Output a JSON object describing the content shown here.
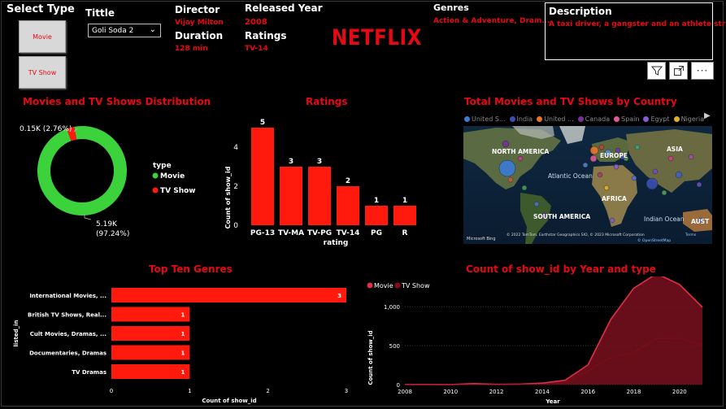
{
  "filters": {
    "select_type_label": "Select Type",
    "movie_button": "Movie",
    "tvshow_button": "TV Show",
    "title_label": "Tittle",
    "title_value": "Goli Soda 2"
  },
  "details": {
    "director_label": "Director",
    "director_value": "Vijay Milton",
    "duration_label": "Duration",
    "duration_value": "128 min",
    "released_label": "Released Year",
    "released_value": "2008",
    "ratings_label": "Ratings",
    "ratings_value": "TV-14",
    "genres_label": "Genres",
    "genres_value": "Action & Adventure, Dram...",
    "description_label": "Description",
    "description_value": "A taxi driver, a gangster and an athlete stru..."
  },
  "logo_text": "NETFLIX",
  "colors": {
    "accent": "#e50914",
    "movie": "#3cd23c",
    "tvshow": "#ff1a0d",
    "bar": "#ff1a0d"
  },
  "visual_icons": [
    "filter-icon",
    "focus-mode-icon",
    "more-options-icon"
  ],
  "donut": {
    "title": "Movies and TV Shows Distribution",
    "legend_title": "type",
    "legend": [
      "Movie",
      "TV Show"
    ],
    "tv_label": "0.15K (2.76%)",
    "movie_label_1": "5.19K",
    "movie_label_2": "(97.24%)"
  },
  "map": {
    "title": "Total Movies and TV Shows by Country",
    "legend": [
      {
        "name": "United S...",
        "color": "#3a7bd5"
      },
      {
        "name": "India",
        "color": "#3a4fb0"
      },
      {
        "name": "United ...",
        "color": "#e8742a"
      },
      {
        "name": "Canada",
        "color": "#7a2f9a"
      },
      {
        "name": "Spain",
        "color": "#e05a9a"
      },
      {
        "name": "Egypt",
        "color": "#8a5ad0"
      },
      {
        "name": "Nigeria",
        "color": "#e0b020"
      }
    ],
    "labels": {
      "na": "NORTH AMERICA",
      "eu": "EUROPE",
      "as": "ASIA",
      "af": "AFRICA",
      "sa": "SOUTH AMERICA",
      "ao": "Atlantic Ocean",
      "io": "Indian Ocean",
      "au": "AUST"
    },
    "attribution": "© 2022 TomTom, Earthstar Geographics SIO, © 2023 Microsoft Corporation",
    "terms": "Terms",
    "osm": "© OpenStreetMap",
    "bing": "Microsoft Bing"
  },
  "chart_data": [
    {
      "type": "pie",
      "title": "Movies and TV Shows Distribution",
      "categories": [
        "Movie",
        "TV Show"
      ],
      "values": [
        5190,
        150
      ],
      "percentages": [
        97.24,
        2.76
      ]
    },
    {
      "type": "bar",
      "title": "Ratings",
      "categories": [
        "PG-13",
        "TV-MA",
        "TV-PG",
        "TV-14",
        "PG",
        "R"
      ],
      "values": [
        5,
        3,
        3,
        2,
        1,
        1
      ],
      "xlabel": "rating",
      "ylabel": "Count of show_id",
      "ylim": [
        0,
        5
      ],
      "yticks": [
        0,
        2,
        4
      ]
    },
    {
      "type": "bar",
      "orientation": "horizontal",
      "title": "Top Ten Genres",
      "categories": [
        "International Movies, ...",
        "British TV Shows, Real...",
        "Cult Movies, Dramas, ...",
        "Documentaries, Dramas",
        "TV Dramas"
      ],
      "values": [
        3,
        1,
        1,
        1,
        1
      ],
      "xlabel": "Count of show_id",
      "ylabel": "listed_in",
      "xlim": [
        0,
        3
      ],
      "xticks": [
        0,
        1,
        2,
        3
      ]
    },
    {
      "type": "area",
      "title": "Count of show_id by Year and type",
      "xlabel": "Year",
      "ylabel": "Count of show_id",
      "xlim": [
        2008,
        2021
      ],
      "ylim": [
        0,
        1200
      ],
      "yticks": [
        0,
        500,
        1000
      ],
      "ytick_labels": [
        "0",
        "500",
        "1,000"
      ],
      "xticks": [
        2008,
        2010,
        2012,
        2014,
        2016,
        2018,
        2020
      ],
      "legend": "top-left",
      "series": [
        {
          "name": "Movie",
          "x": [
            2008,
            2009,
            2010,
            2011,
            2012,
            2013,
            2014,
            2015,
            2016,
            2017,
            2018,
            2019,
            2020,
            2021
          ],
          "values": [
            2,
            2,
            1,
            13,
            3,
            6,
            19,
            56,
            253,
            839,
            1237,
            1424,
            1284,
            993
          ]
        },
        {
          "name": "TV Show",
          "x": [
            2008,
            2009,
            2010,
            2011,
            2012,
            2013,
            2014,
            2015,
            2016,
            2017,
            2018,
            2019,
            2020,
            2021
          ],
          "values": [
            1,
            0,
            0,
            0,
            0,
            5,
            5,
            26,
            176,
            349,
            412,
            592,
            595,
            505
          ]
        }
      ]
    }
  ]
}
